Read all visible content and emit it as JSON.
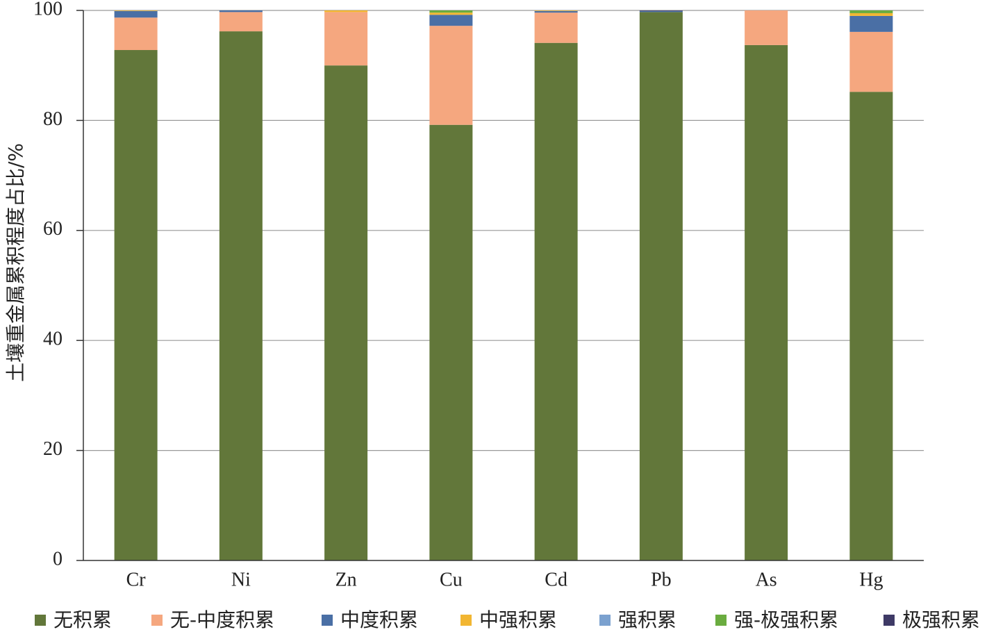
{
  "chart_data": {
    "type": "stacked_bar",
    "y_label": "土壤重金属累积程度占比/%",
    "categories": [
      "Cr",
      "Ni",
      "Zn",
      "Cu",
      "Cd",
      "Pb",
      "As",
      "Hg"
    ],
    "series": [
      {
        "name": "无积累",
        "color": "#62773a",
        "values": [
          92.8,
          96.2,
          90.0,
          79.2,
          94.1,
          99.7,
          93.7,
          85.2
        ]
      },
      {
        "name": "无-中度积累",
        "color": "#f5a77f",
        "values": [
          5.9,
          3.5,
          9.7,
          18.0,
          5.5,
          0,
          6.3,
          10.9
        ]
      },
      {
        "name": "中度积累",
        "color": "#4a6fa5",
        "values": [
          1.2,
          0.3,
          0,
          2.0,
          0.3,
          0.2,
          0,
          2.9
        ]
      },
      {
        "name": "中强积累",
        "color": "#f2b632",
        "values": [
          0.1,
          0,
          0.3,
          0.4,
          0.1,
          0,
          0,
          0.5
        ]
      },
      {
        "name": "强积累",
        "color": "#7ba1cf",
        "values": [
          0,
          0,
          0,
          0,
          0,
          0,
          0,
          0
        ]
      },
      {
        "name": "强-极强积累",
        "color": "#6aac3f",
        "values": [
          0,
          0,
          0,
          0.4,
          0,
          0,
          0,
          0.5
        ]
      },
      {
        "name": "极强积累",
        "color": "#3e3a66",
        "values": [
          0,
          0,
          0,
          0,
          0,
          0.1,
          0,
          0
        ]
      }
    ],
    "ylim": [
      0,
      100
    ],
    "yticks": [
      0,
      20,
      40,
      60,
      80,
      100
    ],
    "grid": true
  }
}
